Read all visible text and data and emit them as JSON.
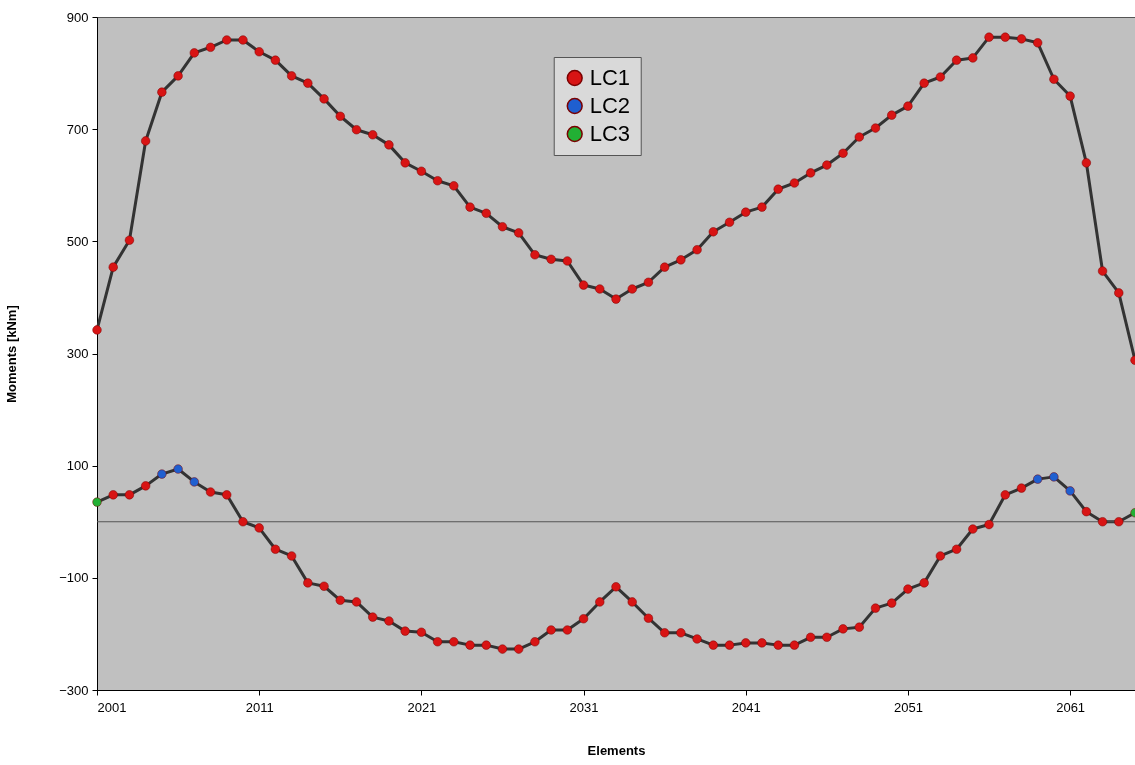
{
  "chart_data": {
    "type": "line",
    "xlabel": "Elements",
    "ylabel": "Moments [kNm]",
    "x": [
      2001,
      2002,
      2003,
      2004,
      2005,
      2006,
      2007,
      2008,
      2009,
      2010,
      2011,
      2012,
      2013,
      2014,
      2015,
      2016,
      2017,
      2018,
      2019,
      2020,
      2021,
      2022,
      2023,
      2024,
      2025,
      2026,
      2027,
      2028,
      2029,
      2030,
      2031,
      2032,
      2033,
      2034,
      2035,
      2036,
      2037,
      2038,
      2039,
      2040,
      2041,
      2042,
      2043,
      2044,
      2045,
      2046,
      2047,
      2048,
      2049,
      2050,
      2051,
      2052,
      2053,
      2054,
      2055,
      2056,
      2057,
      2058,
      2059,
      2060,
      2061,
      2062,
      2063,
      2064,
      2065
    ],
    "series": [
      {
        "color": "#333333",
        "values": [
          342,
          454,
          502,
          679,
          766,
          795,
          836,
          846,
          859,
          859,
          838,
          823,
          795,
          782,
          754,
          723,
          699,
          690,
          672,
          640,
          625,
          608,
          599,
          561,
          550,
          526,
          515,
          476,
          468,
          465,
          422,
          415,
          397,
          415,
          427,
          454,
          467,
          485,
          517,
          534,
          552,
          561,
          593,
          604,
          622,
          636,
          657,
          686,
          702,
          725,
          741,
          782,
          793,
          823,
          827,
          864,
          864,
          861,
          854,
          789,
          759,
          640,
          447,
          408,
          288
        ]
      },
      {
        "color": "#333333",
        "values": [
          35,
          48,
          48,
          64,
          85,
          94,
          71,
          53,
          48,
          0,
          -11,
          -49,
          -61,
          -109,
          -115,
          -140,
          -143,
          -170,
          -177,
          -195,
          -197,
          -214,
          -214,
          -220,
          -220,
          -227,
          -227,
          -214,
          -193,
          -193,
          -173,
          -143,
          -116,
          -143,
          -172,
          -198,
          -198,
          -209,
          -220,
          -220,
          -216,
          -216,
          -220,
          -220,
          -206,
          -206,
          -191,
          -188,
          -154,
          -145,
          -120,
          -109,
          -61,
          -49,
          -13,
          -5,
          48,
          60,
          76,
          80,
          55,
          18,
          0,
          0,
          16
        ]
      },
      {
        "type": "scatter",
        "marker": "circle",
        "name": "LC1",
        "color": "#d81414",
        "x": [
          2001,
          2002,
          2003,
          2004,
          2005,
          2006,
          2007,
          2008,
          2009,
          2010,
          2011,
          2012,
          2013,
          2014,
          2015,
          2016,
          2017,
          2018,
          2019,
          2020,
          2021,
          2022,
          2023,
          2024,
          2025,
          2026,
          2027,
          2028,
          2029,
          2030,
          2031,
          2032,
          2033,
          2034,
          2035,
          2036,
          2037,
          2038,
          2039,
          2040,
          2041,
          2042,
          2043,
          2044,
          2045,
          2046,
          2047,
          2048,
          2049,
          2050,
          2051,
          2052,
          2053,
          2054,
          2055,
          2056,
          2057,
          2058,
          2059,
          2060,
          2061,
          2062,
          2063,
          2064,
          2065,
          2002,
          2003,
          2004,
          2008,
          2009,
          2010,
          2011,
          2012,
          2013,
          2014,
          2015,
          2016,
          2017,
          2018,
          2019,
          2020,
          2021,
          2022,
          2023,
          2024,
          2025,
          2026,
          2027,
          2028,
          2029,
          2030,
          2031,
          2032,
          2033,
          2034,
          2035,
          2036,
          2037,
          2038,
          2039,
          2040,
          2041,
          2042,
          2043,
          2044,
          2045,
          2046,
          2047,
          2048,
          2049,
          2050,
          2051,
          2052,
          2053,
          2054,
          2055,
          2056,
          2057,
          2058,
          2062,
          2063,
          2064
        ],
        "values": [
          342,
          454,
          502,
          679,
          766,
          795,
          836,
          846,
          859,
          859,
          838,
          823,
          795,
          782,
          754,
          723,
          699,
          690,
          672,
          640,
          625,
          608,
          599,
          561,
          550,
          526,
          515,
          476,
          468,
          465,
          422,
          415,
          397,
          415,
          427,
          454,
          467,
          485,
          517,
          534,
          552,
          561,
          593,
          604,
          622,
          636,
          657,
          686,
          702,
          725,
          741,
          782,
          793,
          823,
          827,
          864,
          864,
          861,
          854,
          789,
          759,
          640,
          447,
          408,
          288,
          48,
          48,
          64,
          53,
          48,
          0,
          -11,
          -49,
          -61,
          -109,
          -115,
          -140,
          -143,
          -170,
          -177,
          -195,
          -197,
          -214,
          -214,
          -220,
          -220,
          -227,
          -227,
          -214,
          -193,
          -193,
          -173,
          -143,
          -116,
          -143,
          -172,
          -198,
          -198,
          -209,
          -220,
          -220,
          -216,
          -216,
          -220,
          -220,
          -206,
          -206,
          -191,
          -188,
          -154,
          -145,
          -120,
          -109,
          -61,
          -49,
          -13,
          -5,
          48,
          60,
          18,
          0,
          0
        ]
      },
      {
        "type": "scatter",
        "marker": "circle",
        "name": "LC2",
        "color": "#1f5fd0",
        "x": [
          2005,
          2006,
          2007,
          2059,
          2060,
          2061
        ],
        "values": [
          85,
          94,
          71,
          76,
          80,
          55
        ]
      },
      {
        "type": "scatter",
        "marker": "circle",
        "name": "LC3",
        "color": "#22b034",
        "x": [
          2001,
          2065
        ],
        "values": [
          35,
          16
        ]
      }
    ],
    "xlim": [
      2001,
      2065
    ],
    "xticks": [
      2001,
      2011,
      2021,
      2031,
      2041,
      2051,
      2061
    ],
    "ylim": [
      -300,
      900
    ],
    "yticks": [
      -300,
      -100,
      100,
      300,
      500,
      700,
      900
    ],
    "ref_lines": [
      {
        "axis": "y",
        "value": 0,
        "color": "#555555"
      }
    ],
    "legend": "top center"
  }
}
